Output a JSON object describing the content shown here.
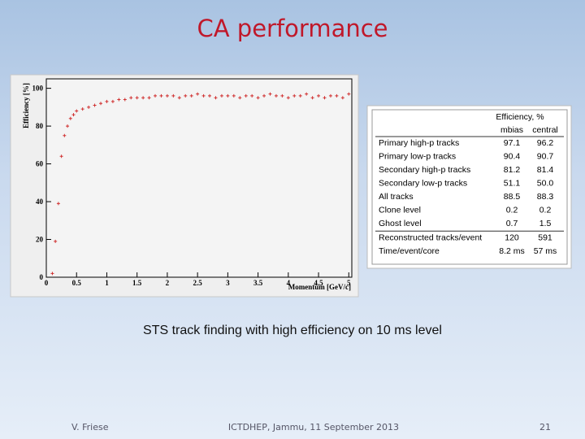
{
  "title": "CA performance",
  "chart_data": {
    "type": "scatter",
    "xlabel": "Momentum [GeV/c]",
    "ylabel": "Efficiency [%]",
    "x": [
      0.1,
      0.15,
      0.2,
      0.25,
      0.3,
      0.35,
      0.4,
      0.45,
      0.5,
      0.6,
      0.7,
      0.8,
      0.9,
      1.0,
      1.1,
      1.2,
      1.3,
      1.4,
      1.5,
      1.6,
      1.7,
      1.8,
      1.9,
      2.0,
      2.1,
      2.2,
      2.3,
      2.4,
      2.5,
      2.6,
      2.7,
      2.8,
      2.9,
      3.0,
      3.1,
      3.2,
      3.3,
      3.4,
      3.5,
      3.6,
      3.7,
      3.8,
      3.9,
      4.0,
      4.1,
      4.2,
      4.3,
      4.4,
      4.5,
      4.6,
      4.7,
      4.8,
      4.9,
      5.0
    ],
    "y": [
      2,
      19,
      39,
      64,
      75,
      80,
      84,
      86,
      88,
      89,
      90,
      91,
      92,
      93,
      93,
      94,
      94,
      95,
      95,
      95,
      95,
      96,
      96,
      96,
      96,
      95,
      96,
      96,
      97,
      96,
      96,
      95,
      96,
      96,
      96,
      95,
      96,
      96,
      95,
      96,
      97,
      96,
      96,
      95,
      96,
      96,
      97,
      95,
      96,
      95,
      96,
      96,
      95,
      97
    ],
    "color": "#d03030",
    "xlim": [
      0,
      5.05
    ],
    "xticks": [
      0,
      0.5,
      1,
      1.5,
      2,
      2.5,
      3,
      3.5,
      4,
      4.5,
      5
    ],
    "ylim": [
      0,
      105
    ],
    "yticks": [
      0,
      20,
      40,
      60,
      80,
      100
    ]
  },
  "table": {
    "header": "Efficiency, %",
    "columns": [
      "mbias",
      "central"
    ],
    "rows": [
      [
        "Primary high-p tracks",
        "97.1",
        "96.2"
      ],
      [
        "Primary low-p tracks",
        "90.4",
        "90.7"
      ],
      [
        "Secondary high-p tracks",
        "81.2",
        "81.4"
      ],
      [
        "Secondary low-p tracks",
        "51.1",
        "50.0"
      ],
      [
        "All tracks",
        "88.5",
        "88.3"
      ],
      [
        "Clone level",
        "0.2",
        "0.2"
      ],
      [
        "Ghost level",
        "0.7",
        "1.5"
      ],
      [
        "Reconstructed tracks/event",
        "120",
        "591"
      ],
      [
        "Time/event/core",
        "8.2 ms",
        "57 ms"
      ]
    ]
  },
  "caption": "STS track finding with high efficiency on 10 ms level",
  "footer": {
    "author": "V. Friese",
    "event": "ICTDHEP, Jammu, 11 September 2013",
    "page": "21"
  }
}
